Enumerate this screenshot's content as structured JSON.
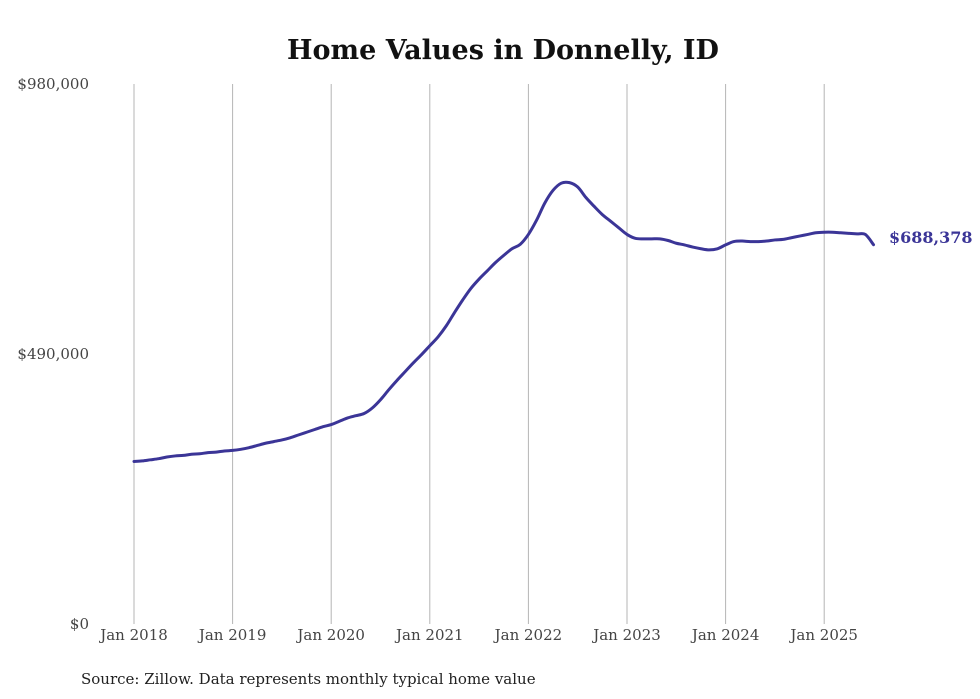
{
  "chart_data": {
    "type": "line",
    "title": "Home Values in Donnelly, ID",
    "xlabel": "",
    "ylabel": "",
    "ylim": [
      0,
      980000
    ],
    "y_ticks": [
      "$0",
      "$490,000",
      "$980,000"
    ],
    "x_ticks": [
      "Jan 2018",
      "Jan 2019",
      "Jan 2020",
      "Jan 2021",
      "Jan 2022",
      "Jan 2023",
      "Jan 2024",
      "Jan 2025"
    ],
    "grid": "vertical",
    "line_color": "#3b3597",
    "end_label": "$688,378",
    "series": [
      {
        "x": [
          "2018-01",
          "2018-02",
          "2018-03",
          "2018-04",
          "2018-05",
          "2018-06",
          "2018-07",
          "2018-08",
          "2018-09",
          "2018-10",
          "2018-11",
          "2018-12",
          "2019-01",
          "2019-02",
          "2019-03",
          "2019-04",
          "2019-05",
          "2019-06",
          "2019-07",
          "2019-08",
          "2019-09",
          "2019-10",
          "2019-11",
          "2019-12",
          "2020-01",
          "2020-02",
          "2020-03",
          "2020-04",
          "2020-05",
          "2020-06",
          "2020-07",
          "2020-08",
          "2020-09",
          "2020-10",
          "2020-11",
          "2020-12",
          "2021-01",
          "2021-02",
          "2021-03",
          "2021-04",
          "2021-05",
          "2021-06",
          "2021-07",
          "2021-08",
          "2021-09",
          "2021-10",
          "2021-11",
          "2021-12",
          "2022-01",
          "2022-02",
          "2022-03",
          "2022-04",
          "2022-05",
          "2022-06",
          "2022-07",
          "2022-08",
          "2022-09",
          "2022-10",
          "2022-11",
          "2022-12",
          "2023-01",
          "2023-02",
          "2023-03",
          "2023-04",
          "2023-05",
          "2023-06",
          "2023-07",
          "2023-08",
          "2023-09",
          "2023-10",
          "2023-11",
          "2023-12",
          "2024-01",
          "2024-02",
          "2024-03",
          "2024-04",
          "2024-05",
          "2024-06",
          "2024-07",
          "2024-08",
          "2024-09",
          "2024-10",
          "2024-11",
          "2024-12",
          "2025-01",
          "2025-02",
          "2025-03",
          "2025-04",
          "2025-05",
          "2025-06",
          "2025-07"
        ],
        "values": [
          295000,
          296000,
          298000,
          300000,
          303000,
          305000,
          306000,
          308000,
          309000,
          311000,
          312000,
          314000,
          315000,
          317000,
          320000,
          324000,
          328000,
          331000,
          334000,
          338000,
          343000,
          348000,
          353000,
          358000,
          362000,
          368000,
          374000,
          378000,
          382000,
          392000,
          407000,
          425000,
          442000,
          458000,
          474000,
          489000,
          505000,
          521000,
          541000,
          565000,
          588000,
          609000,
          626000,
          641000,
          656000,
          669000,
          681000,
          689000,
          707000,
          733000,
          764000,
          787000,
          800000,
          801000,
          793000,
          774000,
          758000,
          743000,
          731000,
          719000,
          707000,
          700000,
          699000,
          699000,
          699000,
          696000,
          691000,
          688000,
          684000,
          681000,
          679000,
          681000,
          688000,
          694000,
          695000,
          694000,
          694000,
          695000,
          697000,
          698000,
          701000,
          704000,
          707000,
          710000,
          711000,
          711000,
          710000,
          709000,
          708000,
          707000,
          688378
        ]
      }
    ]
  },
  "footer": {
    "source": "Source: Zillow. Data represents monthly typical home value"
  }
}
